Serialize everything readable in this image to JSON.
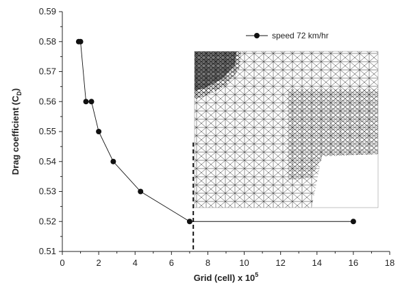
{
  "chart_data": {
    "type": "line",
    "title": "",
    "xlabel": {
      "main": "Grid (cell) x 10",
      "sup": "5"
    },
    "ylabel": {
      "main": "Drag coefficient (C",
      "sub": "D",
      "end": ")"
    },
    "xlim": [
      0,
      18
    ],
    "ylim": [
      0.51,
      0.59
    ],
    "xticks": [
      0,
      2,
      4,
      6,
      8,
      10,
      12,
      14,
      16,
      18
    ],
    "yticks": [
      0.51,
      0.52,
      0.53,
      0.54,
      0.55,
      0.56,
      0.57,
      0.58,
      0.59
    ],
    "ytick_labels": [
      "0.51",
      "0.52",
      "0.53",
      "0.54",
      "0.55",
      "0.56",
      "0.57",
      "0.58",
      "0.59"
    ],
    "grid": false,
    "legend_position": "top-right",
    "series": [
      {
        "name": "speed 72 km/hr",
        "color": "#111111",
        "x": [
          0.9,
          1.0,
          1.3,
          1.6,
          2.0,
          2.8,
          4.3,
          7.0,
          16.0
        ],
        "y": [
          0.58,
          0.58,
          0.56,
          0.56,
          0.55,
          0.54,
          0.53,
          0.52,
          0.52
        ]
      }
    ],
    "reference_line": {
      "x": 7.2,
      "style": "dashed"
    },
    "inset": "tetrahedral mesh image of vehicle body (overlaid on chart)"
  }
}
